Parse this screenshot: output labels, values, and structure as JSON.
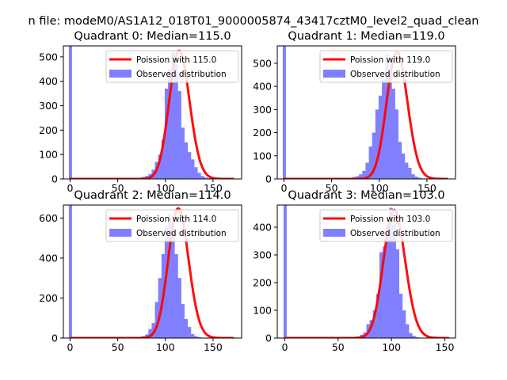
{
  "figure_title": "n file: modeM0/AS1A12_018T01_9000005874_43417cztM0_level2_quad_clean",
  "colors": {
    "observed": "#8080ff",
    "poisson": "#ff0000",
    "axis": "#000000",
    "legend_border": "#cccccc"
  },
  "chart_data": [
    {
      "type": "bar",
      "title": "Quadrant 0: Median=115.0",
      "xlim": [
        -7,
        180
      ],
      "ylim": [
        0,
        545
      ],
      "xticks": [
        0,
        50,
        100,
        150
      ],
      "yticks": [
        0,
        100,
        200,
        300,
        400,
        500
      ],
      "legend": {
        "placement": "upper right",
        "line_label": "Poission with 115.0",
        "bar_label": "Observed distribution"
      },
      "zero_bin": {
        "x": 0,
        "value": 545
      },
      "bins": {
        "start": 3.3,
        "width": 3.43,
        "values": [
          0,
          0,
          0,
          0,
          0,
          0,
          0,
          0,
          0,
          0,
          0,
          0,
          0,
          0,
          0,
          0,
          0,
          0,
          2,
          3,
          5,
          8,
          12,
          20,
          38,
          70,
          100,
          160,
          370,
          450,
          520,
          470,
          360,
          210,
          150,
          110,
          80,
          48,
          25,
          12,
          6,
          3,
          1,
          0,
          0,
          0,
          0,
          0,
          0,
          0,
          0
        ]
      },
      "poisson": {
        "lambda": 115.0,
        "scale": 3.43,
        "x_range": [
          0,
          172
        ]
      }
    },
    {
      "type": "bar",
      "title": "Quadrant 1: Median=119.0",
      "xlim": [
        -7,
        180
      ],
      "ylim": [
        0,
        575
      ],
      "xticks": [
        0,
        50,
        100,
        150
      ],
      "yticks": [
        0,
        100,
        200,
        300,
        400,
        500
      ],
      "legend": {
        "placement": "upper right",
        "line_label": "Poission with 119.0",
        "bar_label": "Observed distribution"
      },
      "zero_bin": {
        "x": 0,
        "value": 575
      },
      "bins": {
        "start": 3.3,
        "width": 3.43,
        "values": [
          0,
          0,
          0,
          0,
          0,
          0,
          0,
          0,
          0,
          0,
          0,
          0,
          0,
          0,
          0,
          0,
          0,
          0,
          3,
          5,
          8,
          12,
          20,
          35,
          70,
          140,
          200,
          300,
          360,
          430,
          540,
          480,
          390,
          300,
          160,
          110,
          70,
          48,
          20,
          10,
          5,
          2,
          1,
          0,
          0,
          0,
          0,
          0,
          0,
          0,
          0
        ]
      },
      "poisson": {
        "lambda": 119.0,
        "scale": 3.43,
        "x_range": [
          0,
          172
        ]
      }
    },
    {
      "type": "bar",
      "title": "Quadrant 2: Median=114.0",
      "xlim": [
        -7,
        180
      ],
      "ylim": [
        0,
        665
      ],
      "xticks": [
        0,
        50,
        100,
        150
      ],
      "yticks": [
        0,
        200,
        400,
        600
      ],
      "legend": {
        "placement": "upper right",
        "line_label": "Poission with 114.0",
        "bar_label": "Observed distribution"
      },
      "zero_bin": {
        "x": 0,
        "value": 665
      },
      "bins": {
        "start": 3.3,
        "width": 3.43,
        "values": [
          0,
          0,
          0,
          0,
          0,
          0,
          0,
          0,
          0,
          0,
          0,
          0,
          0,
          0,
          0,
          0,
          0,
          0,
          2,
          3,
          5,
          10,
          18,
          45,
          75,
          180,
          300,
          420,
          560,
          620,
          530,
          420,
          300,
          170,
          95,
          55,
          20,
          10,
          5,
          2,
          1,
          0,
          0,
          0,
          0,
          0,
          0,
          0,
          0,
          0,
          0
        ]
      },
      "poisson": {
        "lambda": 114.0,
        "scale": 3.43,
        "x_range": [
          0,
          172
        ]
      }
    },
    {
      "type": "bar",
      "title": "Quadrant 3: Median=103.0",
      "xlim": [
        -7,
        160
      ],
      "ylim": [
        0,
        480
      ],
      "xticks": [
        0,
        50,
        100,
        150
      ],
      "yticks": [
        0,
        100,
        200,
        300,
        400
      ],
      "legend": {
        "placement": "upper right",
        "line_label": "Poission with 103.0",
        "bar_label": "Observed distribution"
      },
      "zero_bin": {
        "x": 0,
        "value": 480
      },
      "bins": {
        "start": 3.06,
        "width": 3.06,
        "values": [
          0,
          0,
          0,
          0,
          0,
          0,
          0,
          0,
          0,
          0,
          0,
          0,
          0,
          0,
          0,
          0,
          0,
          0,
          0,
          0,
          3,
          6,
          12,
          20,
          50,
          65,
          100,
          160,
          310,
          330,
          410,
          470,
          410,
          320,
          160,
          100,
          50,
          18,
          8,
          3,
          1,
          0,
          0,
          0,
          0,
          0,
          0,
          0,
          0,
          0,
          0
        ]
      },
      "poisson": {
        "lambda": 103.0,
        "scale": 3.06,
        "x_range": [
          0,
          154
        ]
      }
    }
  ]
}
